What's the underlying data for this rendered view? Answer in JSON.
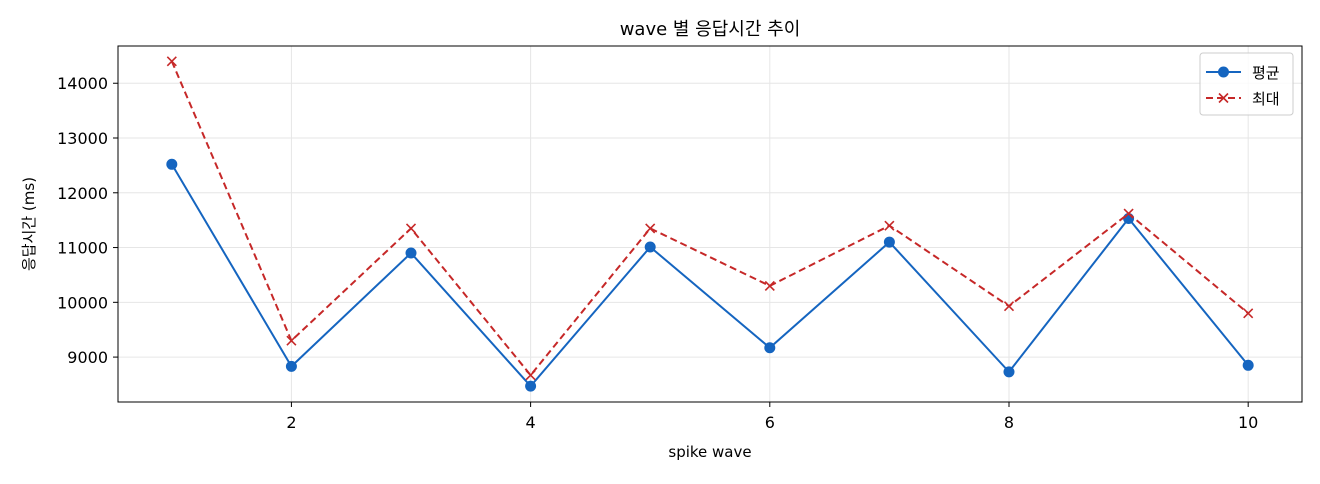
{
  "chart_data": {
    "type": "line",
    "title": "wave 별 응답시간 추이",
    "xlabel": "spike wave",
    "ylabel": "응답시간 (ms)",
    "x": [
      1,
      2,
      3,
      4,
      5,
      6,
      7,
      8,
      9,
      10
    ],
    "x_ticks": [
      2,
      4,
      6,
      8,
      10
    ],
    "y_ticks": [
      9000,
      10000,
      11000,
      12000,
      13000,
      14000
    ],
    "xlim": [
      0.55,
      10.45
    ],
    "ylim": [
      8180,
      14680
    ],
    "grid": true,
    "legend": {
      "placement": "top-right"
    },
    "series": [
      {
        "name": "평균",
        "color": "#1565c0",
        "line_style": "solid",
        "marker": "circle",
        "values": [
          12520,
          8830,
          10900,
          8470,
          11010,
          9170,
          11100,
          8730,
          11530,
          8850
        ]
      },
      {
        "name": "최대",
        "color": "#c62828",
        "line_style": "dashed",
        "marker": "x",
        "values": [
          14400,
          9300,
          11350,
          8670,
          11350,
          10300,
          11400,
          9930,
          11620,
          9800
        ]
      }
    ]
  }
}
